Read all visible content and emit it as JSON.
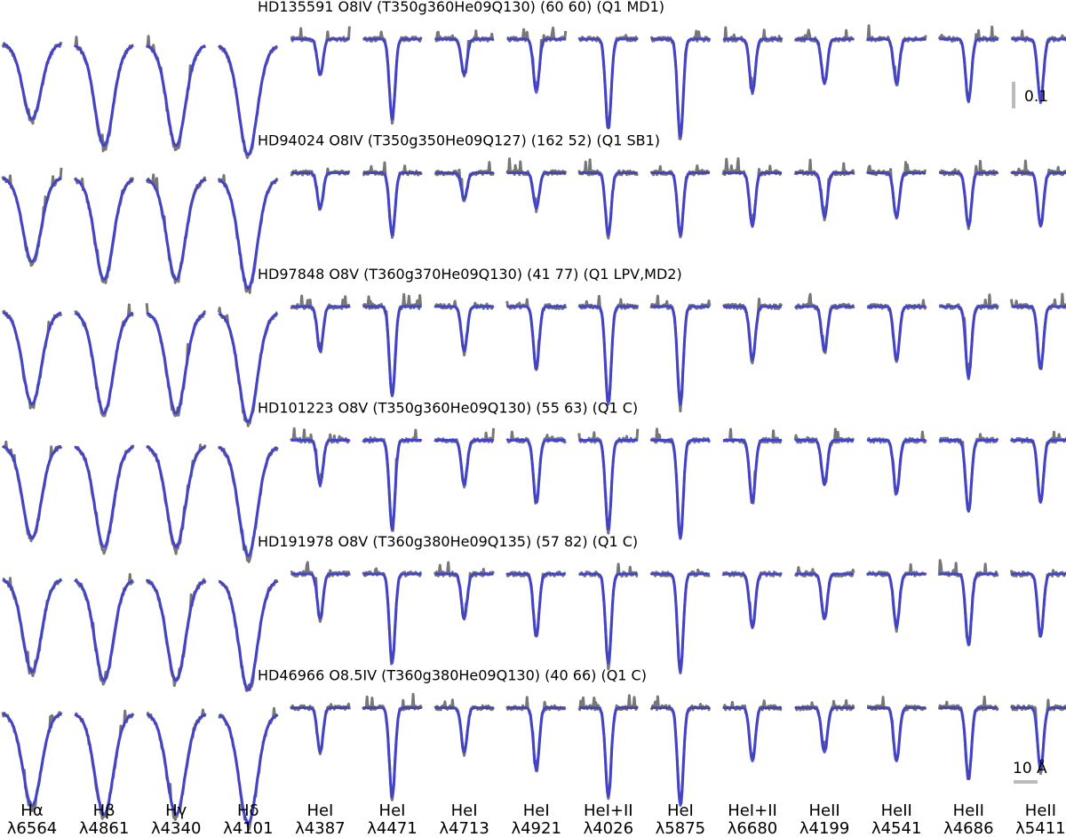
{
  "chart_data": {
    "type": "line",
    "rows": [
      {
        "title": "HD135591 O8IV (T350g360He09Q130) (60 60) (Q1 MD1)",
        "depths": [
          0.09,
          0.12,
          0.12,
          0.13,
          0.04,
          0.09,
          0.04,
          0.06,
          0.1,
          0.11,
          0.06,
          0.05,
          0.05,
          0.07,
          0.07
        ]
      },
      {
        "title": "HD94024 O8IV (T350g350He09Q127) (162 52) (Q1 SB1)",
        "depths": [
          0.1,
          0.12,
          0.12,
          0.13,
          0.04,
          0.07,
          0.03,
          0.04,
          0.07,
          0.07,
          0.06,
          0.05,
          0.05,
          0.06,
          0.06
        ]
      },
      {
        "title": "HD97848 O8V (T360g370He09Q130) (41 77) (Q1 LPV,MD2)",
        "depths": [
          0.11,
          0.12,
          0.12,
          0.13,
          0.05,
          0.1,
          0.05,
          0.07,
          0.11,
          0.11,
          0.06,
          0.05,
          0.06,
          0.08,
          0.07
        ]
      },
      {
        "title": "HD101223 O8V (T350g360He09Q130) (55 63) (Q1 C)",
        "depths": [
          0.11,
          0.12,
          0.12,
          0.13,
          0.05,
          0.1,
          0.05,
          0.07,
          0.1,
          0.11,
          0.07,
          0.05,
          0.06,
          0.08,
          0.07
        ]
      },
      {
        "title": "HD191978 O8V (T360g380He09Q135) (57 82) (Q1 C)",
        "depths": [
          0.11,
          0.12,
          0.12,
          0.13,
          0.05,
          0.1,
          0.05,
          0.07,
          0.1,
          0.11,
          0.06,
          0.05,
          0.06,
          0.08,
          0.07
        ]
      },
      {
        "title": "HD46966 O8.5IV (T360g380He09Q130) (40 66) (Q1 C)",
        "depths": [
          0.11,
          0.12,
          0.12,
          0.13,
          0.05,
          0.1,
          0.05,
          0.07,
          0.1,
          0.11,
          0.06,
          0.05,
          0.06,
          0.08,
          0.07
        ]
      }
    ],
    "lines": [
      {
        "species": "Hα",
        "wavelength": "λ6564"
      },
      {
        "species": "Hβ",
        "wavelength": "λ4861"
      },
      {
        "species": "Hγ",
        "wavelength": "λ4340"
      },
      {
        "species": "Hδ",
        "wavelength": "λ4101"
      },
      {
        "species": "HeI",
        "wavelength": "λ4387"
      },
      {
        "species": "HeI",
        "wavelength": "λ4471"
      },
      {
        "species": "HeI",
        "wavelength": "λ4713"
      },
      {
        "species": "HeI",
        "wavelength": "λ4921"
      },
      {
        "species": "HeI+II",
        "wavelength": "λ4026"
      },
      {
        "species": "HeI",
        "wavelength": "λ5875"
      },
      {
        "species": "HeI+II",
        "wavelength": "λ6680"
      },
      {
        "species": "HeII",
        "wavelength": "λ4199"
      },
      {
        "species": "HeII",
        "wavelength": "λ4541"
      },
      {
        "species": "HeII",
        "wavelength": "λ4686"
      },
      {
        "species": "HeII",
        "wavelength": "λ5411"
      }
    ],
    "series_colors": {
      "observed": "#777777",
      "model": "#3a3ad6",
      "scale_bar": "#bbbbbb"
    },
    "scale_bars": {
      "flux": "0.1",
      "wavelength": "10 Å"
    }
  }
}
